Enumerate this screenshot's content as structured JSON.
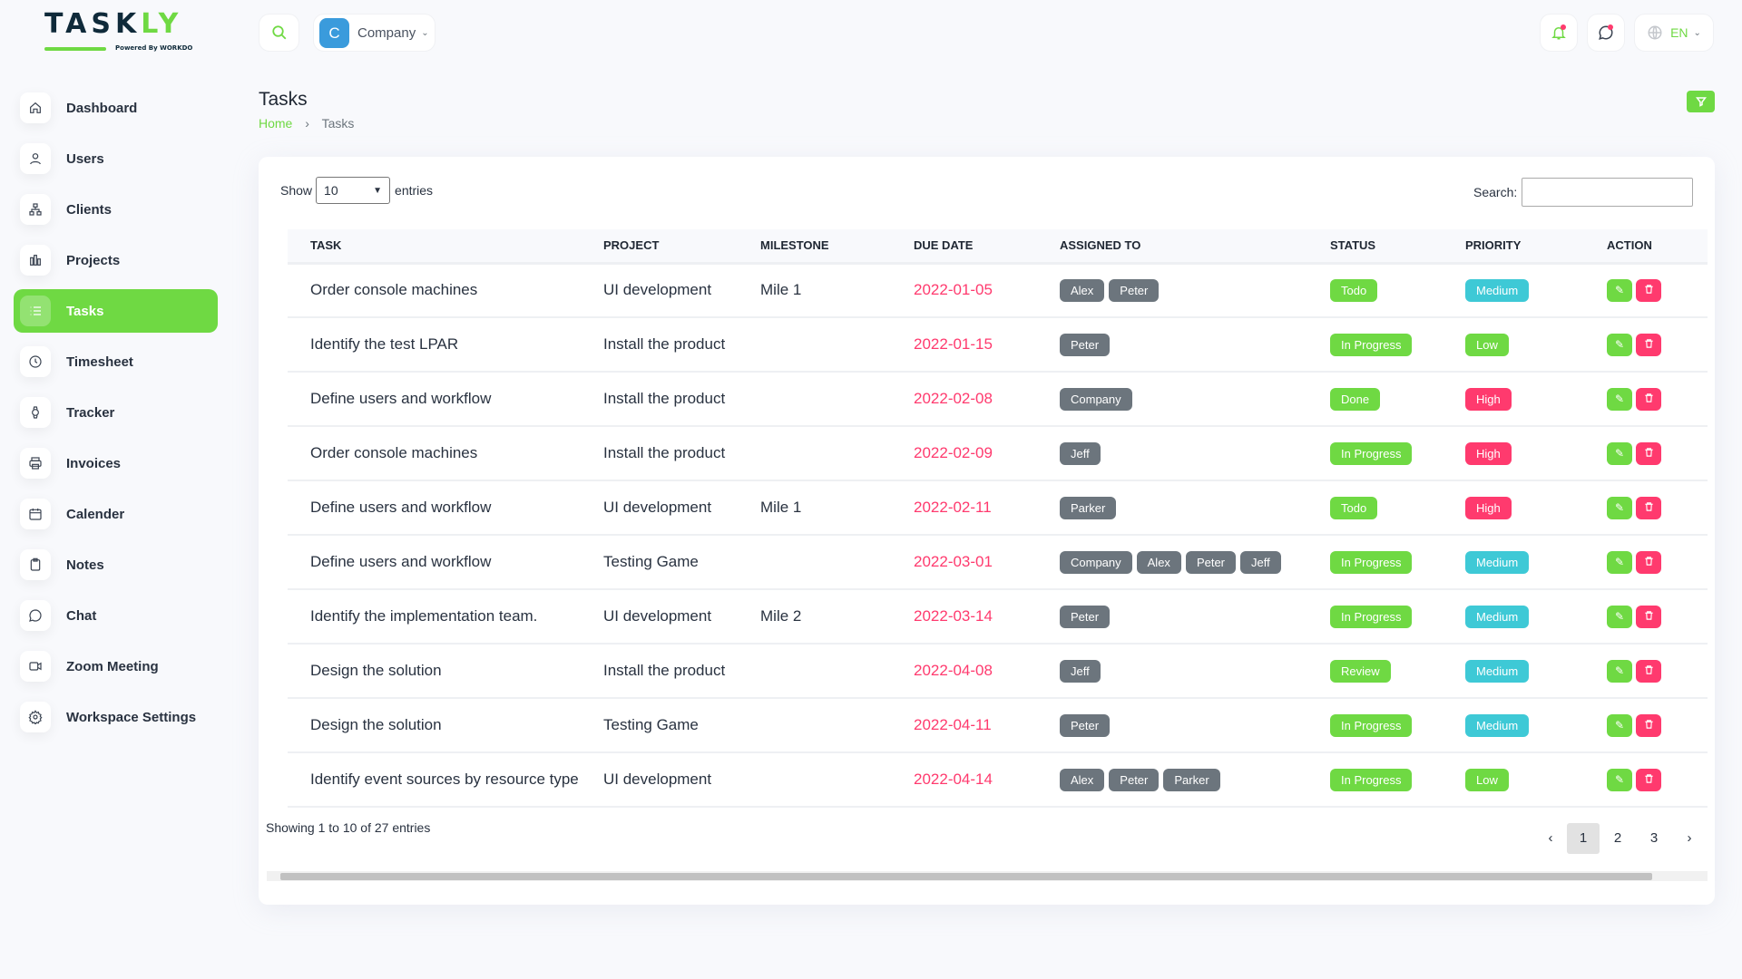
{
  "brand": {
    "logo_text": "TASKLY",
    "tagline": "Powered By WORKDO"
  },
  "topbar": {
    "company_initial": "C",
    "company_label": "Company",
    "language": "EN"
  },
  "sidebar": {
    "items": [
      {
        "label": "Dashboard",
        "icon": "home-icon"
      },
      {
        "label": "Users",
        "icon": "user-icon"
      },
      {
        "label": "Clients",
        "icon": "sitemap-icon"
      },
      {
        "label": "Projects",
        "icon": "chart-bars-icon"
      },
      {
        "label": "Tasks",
        "icon": "list-icon",
        "active": true
      },
      {
        "label": "Timesheet",
        "icon": "clock-icon"
      },
      {
        "label": "Tracker",
        "icon": "watch-icon"
      },
      {
        "label": "Invoices",
        "icon": "printer-icon"
      },
      {
        "label": "Calender",
        "icon": "calendar-icon"
      },
      {
        "label": "Notes",
        "icon": "clipboard-icon"
      },
      {
        "label": "Chat",
        "icon": "message-icon"
      },
      {
        "label": "Zoom Meeting",
        "icon": "video-icon"
      },
      {
        "label": "Workspace Settings",
        "icon": "gear-icon"
      }
    ]
  },
  "page": {
    "title": "Tasks",
    "breadcrumb": {
      "home": "Home",
      "current": "Tasks"
    }
  },
  "table_controls": {
    "show": "Show",
    "entries_value": "10",
    "entries": "entries",
    "search_label": "Search:",
    "search_value": ""
  },
  "columns": [
    "TASK",
    "PROJECT",
    "MILESTONE",
    "DUE DATE",
    "ASSIGNED TO",
    "STATUS",
    "PRIORITY",
    "ACTION"
  ],
  "colors": {
    "accent": "#6fd943",
    "danger": "#ff3a6e",
    "info": "#3ec9d6",
    "secondary": "#6c757d"
  },
  "rows": [
    {
      "task": "Order console machines",
      "project": "UI development",
      "milestone": "Mile 1",
      "due": "2022-01-05",
      "assigned": [
        "Alex",
        "Peter"
      ],
      "status": "Todo",
      "priority": "Medium"
    },
    {
      "task": "Identify the test LPAR",
      "project": "Install the product",
      "milestone": "",
      "due": "2022-01-15",
      "assigned": [
        "Peter"
      ],
      "status": "In Progress",
      "priority": "Low"
    },
    {
      "task": "Define users and workflow",
      "project": "Install the product",
      "milestone": "",
      "due": "2022-02-08",
      "assigned": [
        "Company"
      ],
      "status": "Done",
      "priority": "High"
    },
    {
      "task": "Order console machines",
      "project": "Install the product",
      "milestone": "",
      "due": "2022-02-09",
      "assigned": [
        "Jeff"
      ],
      "status": "In Progress",
      "priority": "High"
    },
    {
      "task": "Define users and workflow",
      "project": "UI development",
      "milestone": "Mile 1",
      "due": "2022-02-11",
      "assigned": [
        "Parker"
      ],
      "status": "Todo",
      "priority": "High"
    },
    {
      "task": "Define users and workflow",
      "project": "Testing Game",
      "milestone": "",
      "due": "2022-03-01",
      "assigned": [
        "Company",
        "Alex",
        "Peter",
        "Jeff"
      ],
      "status": "In Progress",
      "priority": "Medium"
    },
    {
      "task": "Identify the implementation team.",
      "project": "UI development",
      "milestone": "Mile 2",
      "due": "2022-03-14",
      "assigned": [
        "Peter"
      ],
      "status": "In Progress",
      "priority": "Medium"
    },
    {
      "task": "Design the solution",
      "project": "Install the product",
      "milestone": "",
      "due": "2022-04-08",
      "assigned": [
        "Jeff"
      ],
      "status": "Review",
      "priority": "Medium"
    },
    {
      "task": "Design the solution",
      "project": "Testing Game",
      "milestone": "",
      "due": "2022-04-11",
      "assigned": [
        "Peter"
      ],
      "status": "In Progress",
      "priority": "Medium"
    },
    {
      "task": "Identify event sources by resource type",
      "project": "UI development",
      "milestone": "",
      "due": "2022-04-14",
      "assigned": [
        "Alex",
        "Peter",
        "Parker"
      ],
      "status": "In Progress",
      "priority": "Low"
    }
  ],
  "footer": {
    "info": "Showing 1 to 10 of 27 entries",
    "pages": [
      "1",
      "2",
      "3"
    ],
    "current_page": "1",
    "prev": "‹",
    "next": "›"
  }
}
